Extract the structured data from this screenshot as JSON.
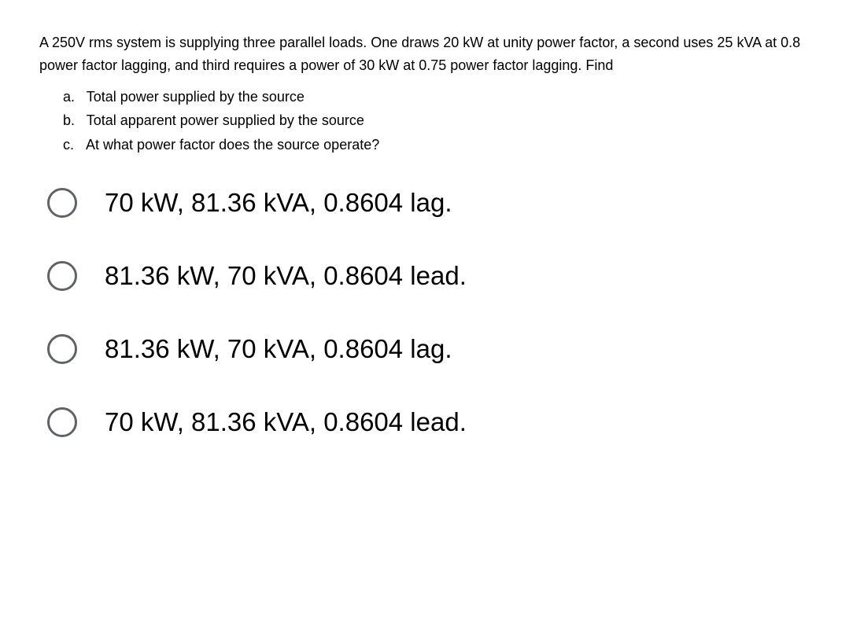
{
  "question": {
    "main_text": "A 250V rms system is supplying three parallel loads. One draws 20 kW at unity power factor, a second uses 25 kVA at 0.8 power factor lagging, and third requires a power of 30 kW at 0.75 power factor lagging. Find",
    "sub_parts": [
      {
        "label": "a.",
        "text": "Total power supplied by the source"
      },
      {
        "label": "b.",
        "text": "Total apparent power supplied by the source"
      },
      {
        "label": "c.",
        "text": "At what power factor does the source operate?"
      }
    ]
  },
  "options": [
    {
      "text": "70 kW, 81.36 kVA, 0.8604 lag."
    },
    {
      "text": "81.36 kW, 70 kVA, 0.8604 lead."
    },
    {
      "text": "81.36 kW, 70 kVA, 0.8604 lag."
    },
    {
      "text": "70 kW, 81.36 kVA, 0.8604 lead."
    }
  ],
  "colors": {
    "text": "#000000",
    "radio_border": "#5f6368",
    "background": "#ffffff"
  }
}
